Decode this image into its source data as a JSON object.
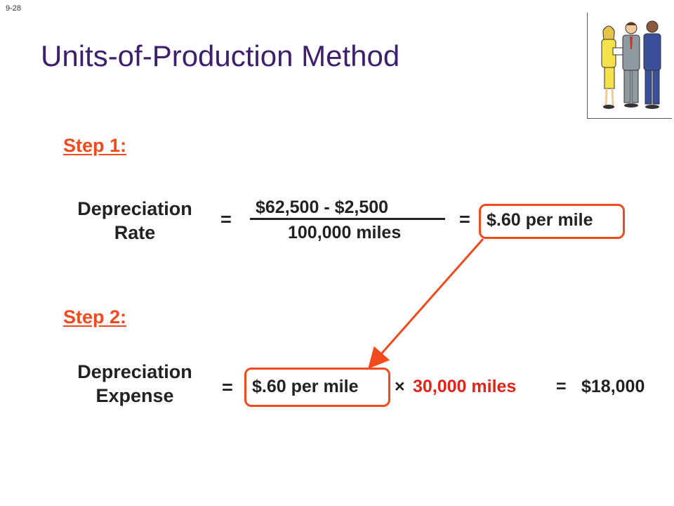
{
  "slide": {
    "number": "9-28",
    "title": "Units-of-Production Method"
  },
  "clipart": {
    "icon": "business-people-icon"
  },
  "step1": {
    "heading": "Step 1:",
    "label_line1": "Depreciation",
    "label_line2": "Rate",
    "equals": "=",
    "numerator": "$62,500 - $2,500",
    "denominator": "100,000 miles",
    "result_equals": "=",
    "result": "$.60 per mile"
  },
  "step2": {
    "heading": "Step 2:",
    "label_line1": "Depreciation",
    "label_line2": "Expense",
    "equals": "=",
    "rate": "$.60 per mile",
    "times": "×",
    "miles": "30,000 miles",
    "result_equals": "=",
    "result": "$18,000"
  },
  "colors": {
    "title": "#3d1f6e",
    "accent": "#f04a1e",
    "red_text": "#e2231a"
  }
}
